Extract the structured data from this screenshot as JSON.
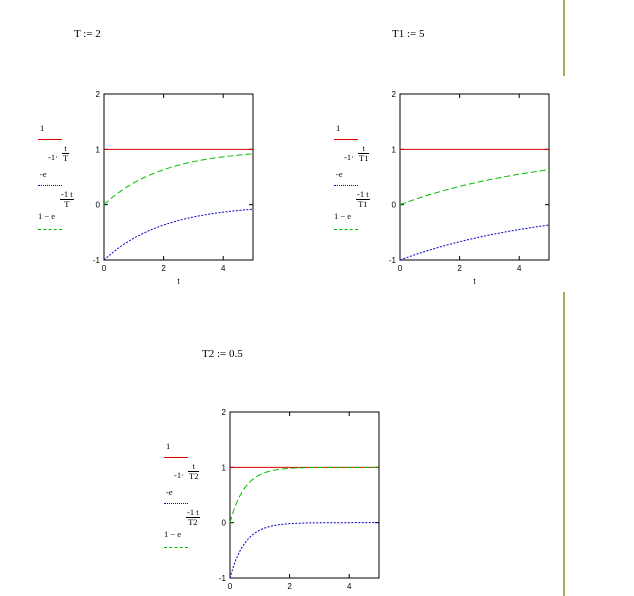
{
  "definitions": {
    "T": "T := 2",
    "T1": "T1 := 5",
    "T2": "T2 := 0.5"
  },
  "colors": {
    "line_one": "#e00000",
    "line_neg_exp": "#0000c0",
    "line_one_minus": "#00c000",
    "divider": "#9fb35a"
  },
  "plots": [
    {
      "legend": {
        "one": "1",
        "exp_prefix": "-1·",
        "exp_num": "t",
        "exp_den": "T",
        "neg_e": "-e",
        "one_minus_e": "1 − e",
        "om_num": "-1 t",
        "om_den": "T"
      },
      "xlabel": "t",
      "xticks": [
        "0",
        "2",
        "4"
      ],
      "yticks": [
        "2",
        "1",
        "0",
        "-1"
      ]
    },
    {
      "legend": {
        "one": "1",
        "exp_prefix": "-1·",
        "exp_num": "t",
        "exp_den": "T1",
        "neg_e": "-e",
        "one_minus_e": "1 − e",
        "om_num": "-1 t",
        "om_den": "T1"
      },
      "xlabel": "t",
      "xticks": [
        "0",
        "2",
        "4"
      ],
      "yticks": [
        "2",
        "1",
        "0",
        "-1"
      ]
    },
    {
      "legend": {
        "one": "1",
        "exp_prefix": "-1·",
        "exp_num": "t",
        "exp_den": "T2",
        "neg_e": "-e",
        "one_minus_e": "1 − e",
        "om_num": "-1 t",
        "om_den": "T2"
      },
      "xlabel": "",
      "xticks": [
        "0",
        "2",
        "4"
      ],
      "yticks": [
        "2",
        "1",
        "0",
        "-1"
      ]
    }
  ],
  "chart_data": [
    {
      "type": "line",
      "xlim": [
        0,
        5
      ],
      "ylim": [
        -1,
        2
      ],
      "time_constant": 2,
      "series": [
        {
          "function": "1",
          "style": "solid"
        },
        {
          "function": "-exp(-t/T)",
          "style": "dotted"
        },
        {
          "function": "1-exp(-t/T)",
          "style": "dashed"
        }
      ]
    },
    {
      "type": "line",
      "xlim": [
        0,
        5
      ],
      "ylim": [
        -1,
        2
      ],
      "time_constant": 5,
      "series": [
        {
          "function": "1",
          "style": "solid"
        },
        {
          "function": "-exp(-t/T1)",
          "style": "dotted"
        },
        {
          "function": "1-exp(-t/T1)",
          "style": "dashed"
        }
      ]
    },
    {
      "type": "line",
      "xlim": [
        0,
        5
      ],
      "ylim": [
        -1,
        2
      ],
      "time_constant": 0.5,
      "series": [
        {
          "function": "1",
          "style": "solid"
        },
        {
          "function": "-exp(-t/T2)",
          "style": "dotted"
        },
        {
          "function": "1-exp(-t/T2)",
          "style": "dashed"
        }
      ]
    }
  ]
}
